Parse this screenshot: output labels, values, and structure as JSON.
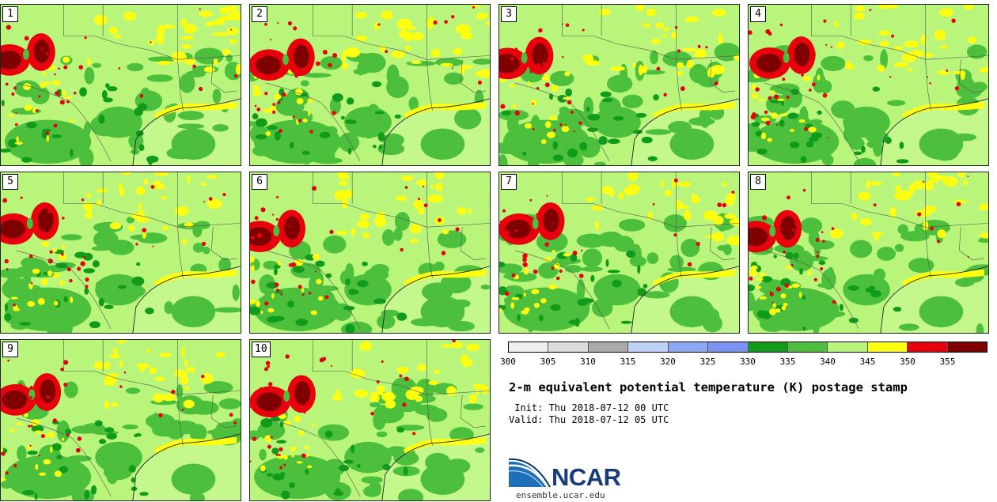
{
  "panels": [
    {
      "label": "1"
    },
    {
      "label": "2"
    },
    {
      "label": "3"
    },
    {
      "label": "4"
    },
    {
      "label": "5"
    },
    {
      "label": "6"
    },
    {
      "label": "7"
    },
    {
      "label": "8"
    },
    {
      "label": "9"
    },
    {
      "label": "10"
    }
  ],
  "colorbar": {
    "colors": [
      "#f0f0f0",
      "#dcdcdc",
      "#aaaaaa",
      "#bcd3f5",
      "#8ba8f5",
      "#7b93f2",
      "#109b1b",
      "#4cbf3c",
      "#b8f57a",
      "#ffff10",
      "#e8000c",
      "#7f0000"
    ],
    "ticks": [
      "300",
      "305",
      "310",
      "315",
      "320",
      "325",
      "330",
      "335",
      "340",
      "345",
      "350",
      "355"
    ]
  },
  "title": "2-m equivalent potential temperature (K) postage stamp",
  "init": " Init: Thu 2018-07-12 00 UTC",
  "valid": "Valid: Thu 2018-07-12 05 UTC",
  "logo": {
    "text": "NCAR",
    "website": "ensemble.ucar.edu"
  }
}
